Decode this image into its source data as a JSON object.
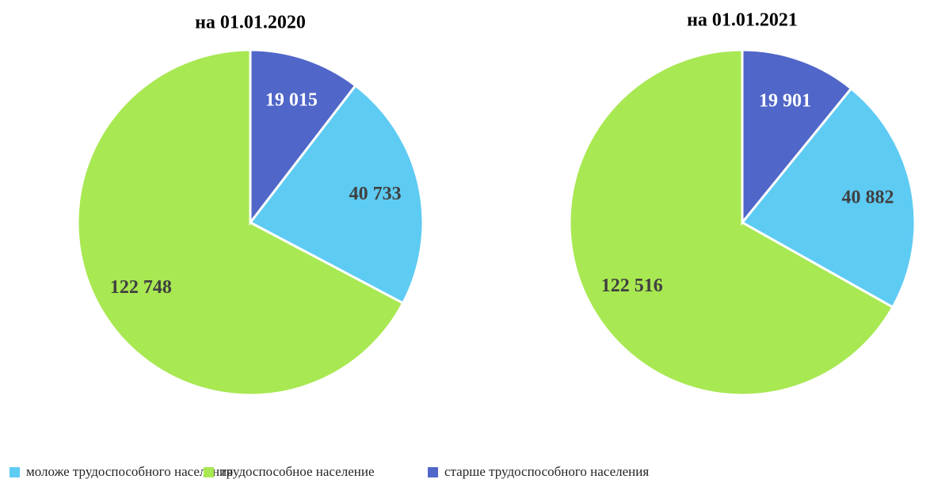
{
  "chart_data": [
    {
      "type": "pie",
      "title": "на 01.01.2020",
      "categories": [
        "моложе трудоспособного населения",
        "трудоспособное население",
        "старше трудоспособного населения"
      ],
      "values": [
        40733,
        122748,
        19015
      ],
      "value_labels": [
        "40 733",
        "122 748",
        "19 015"
      ],
      "colors": [
        "#5ecbf3",
        "#a8e852",
        "#5066c8"
      ],
      "label_colors": [
        "#404040",
        "#404040",
        "#ffffff"
      ]
    },
    {
      "type": "pie",
      "title": "на 01.01.2021",
      "categories": [
        "моложе трудоспособного населения",
        "трудоспособное население",
        "старше трудоспособного населения"
      ],
      "values": [
        40882,
        122516,
        19901
      ],
      "value_labels": [
        "40 882",
        "122 516",
        "19 901"
      ],
      "colors": [
        "#5ecbf3",
        "#a8e852",
        "#5066c8"
      ],
      "label_colors": [
        "#404040",
        "#404040",
        "#ffffff"
      ]
    }
  ]
}
